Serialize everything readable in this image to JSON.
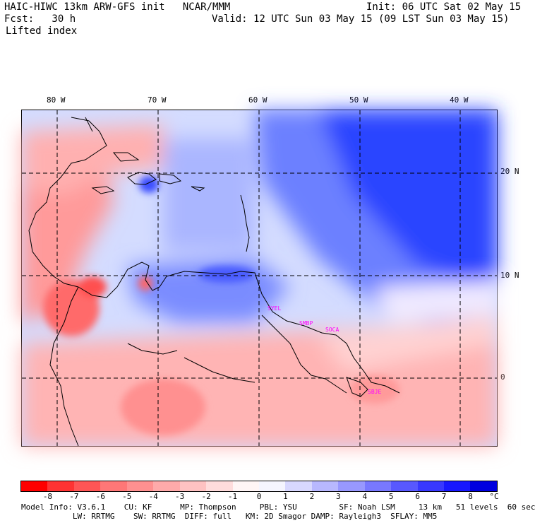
{
  "header": {
    "line1_left": "HAIC-HIWC 13km ARW-GFS init   NCAR/MMM",
    "line1_right": "Init: 06 UTC Sat 02 May 15",
    "line2_left": "Fcst:   30 h",
    "line2_right": "Valid: 12 UTC Sun 03 May 15 (09 LST Sun 03 May 15)",
    "field": "Lifted index"
  },
  "map": {
    "lon_labels": [
      "80 W",
      "70 W",
      "60 W",
      "50 W",
      "40 W"
    ],
    "lat_labels": [
      "20 N",
      "10 N",
      "0"
    ],
    "stations": [
      "SYEL",
      "SMBP",
      "SOCA",
      "SBJE"
    ]
  },
  "colorbar": {
    "colors": [
      "#ff0000",
      "#ff3333",
      "#ff5555",
      "#ff7777",
      "#ff9090",
      "#ffaaaa",
      "#ffc2c2",
      "#ffdcdc",
      "#fff5f5",
      "#f5f5ff",
      "#d8d8ff",
      "#b8b8ff",
      "#9898ff",
      "#7878ff",
      "#5858ff",
      "#3838ff",
      "#1818ff",
      "#0000e0"
    ],
    "ticks": [
      "-8",
      "-7",
      "-6",
      "-5",
      "-4",
      "-3",
      "-2",
      "-1",
      "0",
      "1",
      "2",
      "3",
      "4",
      "5",
      "6",
      "7",
      "8"
    ],
    "unit": "°C"
  },
  "footer": {
    "line1": "Model Info: V3.6.1    CU: KF      MP: Thompson     PBL: YSU         SF: Noah LSM     13 km   51 levels  60 sec",
    "line2": "           LW: RRTMG    SW: RRTMG  DIFF: full   KM: 2D Smagor DAMP: Rayleigh3  SFLAY: MM5"
  }
}
